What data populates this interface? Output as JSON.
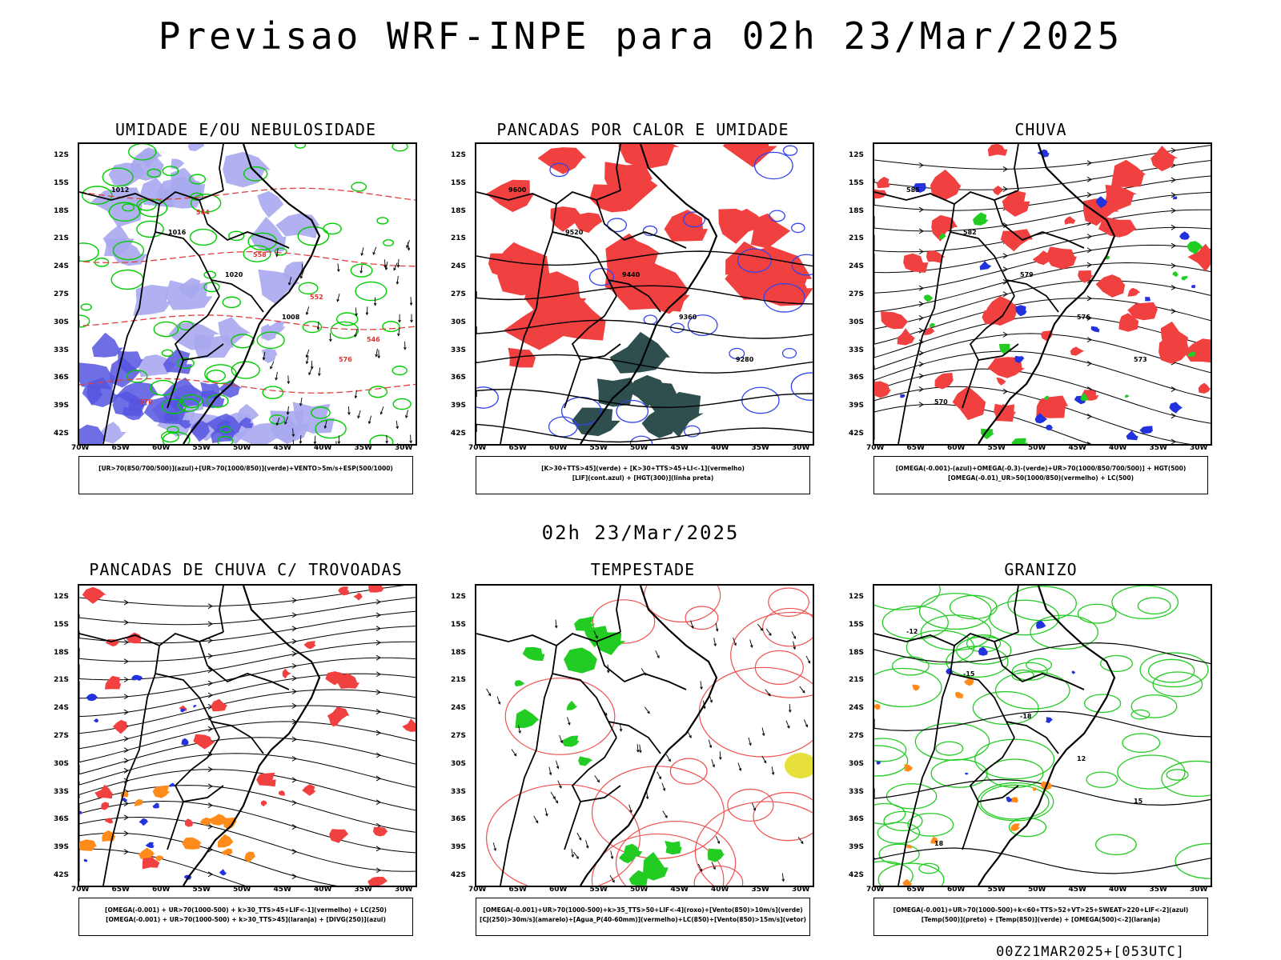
{
  "title": "Previsao WRF-INPE  para 02h 23/Mar/2025",
  "mid_date": "02h 23/Mar/2025",
  "run": "00Z21MAR2025+[053UTC]",
  "lat_labels": [
    "12S",
    "15S",
    "18S",
    "21S",
    "24S",
    "27S",
    "30S",
    "33S",
    "36S",
    "39S",
    "42S"
  ],
  "lon_labels": [
    "70W",
    "65W",
    "60W",
    "55W",
    "50W",
    "45W",
    "40W",
    "35W",
    "30W"
  ],
  "panels": [
    {
      "title": "UMIDADE E/OU NEBULOSIDADE",
      "legend": [
        "[UR>70(850/700/500)](azul)+[UR>70(1000/850)](verde)+VENTO>5m/s+ESP(500/1000)"
      ],
      "labels": [
        "1012",
        "1016",
        "1020",
        "1008",
        "576",
        "570",
        "564",
        "558",
        "552",
        "546"
      ]
    },
    {
      "title": "PANCADAS POR CALOR E UMIDADE",
      "legend": [
        "[K>30+TTS>45](verde) + [K>30+TTS>45+LI<-1](vermelho)",
        "[LIF](cont.azul) + [HGT(300)](linha preta)"
      ],
      "labels": [
        "9600",
        "9520",
        "9440",
        "9360",
        "9280"
      ]
    },
    {
      "title": "CHUVA",
      "legend": [
        "[OMEGA(-0.001)-(azul)+OMEGA(-0.3)-(verde)+UR>70(1000/850/700/500)] + HGT(500)",
        "[OMEGA(-0.01)_UR>50(1000/850)(vermelho) + LC(500)"
      ],
      "labels": [
        "585",
        "582",
        "579",
        "576",
        "573",
        "570"
      ]
    },
    {
      "title": "PANCADAS DE CHUVA C/ TROVOADAS",
      "legend": [
        "[OMEGA(-0.001) + UR>70(1000-500) + k>30_TTS>45+LIF<-1](vermelho) + LC(250)",
        "[OMEGA(-0.001) + UR>70(1000-500) + k>30_TTS>45](laranja) + [DIVG(250)](azul)"
      ],
      "labels": []
    },
    {
      "title": "TEMPESTADE",
      "legend": [
        "[OMEGA(-0.001)+UR>70(1000-500)+k>35_TTS>50+LIF<-4](roxo)+[Vento(850)>10m/s](verde)",
        "[CJ(250)>30m/s](amarelo)+[Agua_P(40-60mm)](vermelho)+LC(850)+[Vento(850)>15m/s](vetor)"
      ],
      "labels": []
    },
    {
      "title": "GRANIZO",
      "legend": [
        "[OMEGA(-0.001)+UR>70(1000-500)+k<60+TTS>52+VT>25+SWEAT>220+LIF<-2](azul)",
        "[Temp(500)](preto) + [Temp(850)](verde) + [OMEGA(500)<-2](laranja)"
      ],
      "labels": [
        "-12",
        "-15",
        "-18",
        "12",
        "15",
        "18"
      ]
    }
  ]
}
